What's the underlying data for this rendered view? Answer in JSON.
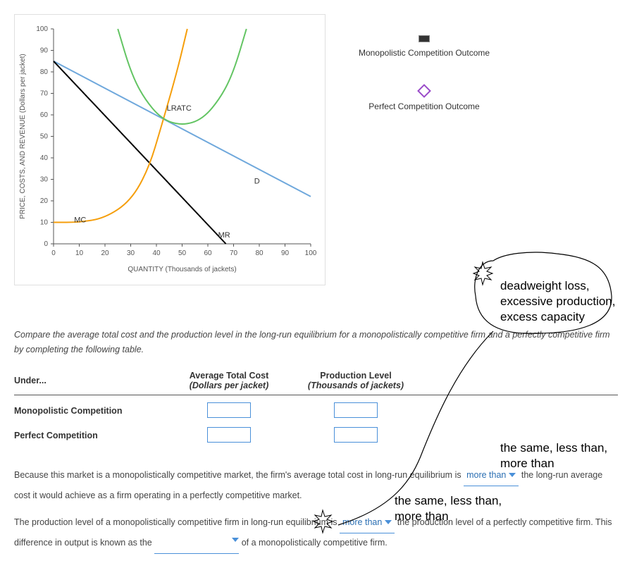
{
  "chart": {
    "y_axis_title": "PRICE, COSTS, AND REVENUE (Dollars per jacket)",
    "x_axis_title": "QUANTITY (Thousands of jackets)",
    "x_ticks": [
      0,
      10,
      20,
      30,
      40,
      50,
      60,
      70,
      80,
      90,
      100
    ],
    "y_ticks": [
      0,
      10,
      20,
      30,
      40,
      50,
      60,
      70,
      80,
      90,
      100
    ],
    "xlim": [
      0,
      100
    ],
    "ylim": [
      0,
      100
    ],
    "background_color": "#ffffff",
    "axis_color": "#555555",
    "curves": {
      "mc": {
        "color": "#f59e0b",
        "width": 2,
        "label": "MC",
        "label_xy": [
          8,
          10
        ],
        "points": [
          [
            0,
            10
          ],
          [
            10,
            10
          ],
          [
            20,
            12
          ],
          [
            30,
            20
          ],
          [
            37,
            35
          ],
          [
            42,
            55
          ],
          [
            48,
            80
          ],
          [
            52,
            100
          ]
        ]
      },
      "lratc": {
        "color": "#62c462",
        "width": 2,
        "label": "LRATC",
        "label_xy": [
          44,
          62
        ],
        "points": [
          [
            25,
            100
          ],
          [
            30,
            80
          ],
          [
            35,
            68
          ],
          [
            42,
            58
          ],
          [
            50,
            55
          ],
          [
            58,
            58
          ],
          [
            65,
            68
          ],
          [
            70,
            80
          ],
          [
            75,
            100
          ]
        ]
      },
      "demand": {
        "color": "#6fa8dc",
        "width": 2,
        "label": "D",
        "label_xy": [
          78,
          28
        ],
        "points": [
          [
            0,
            85
          ],
          [
            100,
            22
          ]
        ]
      },
      "mr": {
        "color": "#000000",
        "width": 2,
        "label": "MR",
        "label_xy": [
          64,
          3
        ],
        "points": [
          [
            0,
            85
          ],
          [
            67,
            0
          ]
        ]
      }
    }
  },
  "legend": {
    "mc_label": "Monopolistic Competition Outcome",
    "pc_label": "Perfect Competition Outcome"
  },
  "paragraph": "Compare the average total cost and the production level in the long-run equilibrium for a monopolistically competitive firm and a perfectly competitive firm by completing the following table.",
  "table": {
    "headers": {
      "c1": "Under...",
      "c2_top": "Average Total Cost",
      "c2_sub": "(Dollars per jacket)",
      "c3_top": "Production Level",
      "c3_sub": "(Thousands of jackets)"
    },
    "rows": [
      {
        "label": "Monopolistic Competition"
      },
      {
        "label": "Perfect Competition"
      }
    ]
  },
  "question1": {
    "pre": "Because this market is a monopolistically competitive market, the firm's average total cost in long-run equilibrium is ",
    "dropdown": "more than",
    "post": " the long-run average cost it would achieve as a firm operating in a perfectly competitive market."
  },
  "question2": {
    "pre": "The production level of a monopolistically competitive firm in long-run equilibrium is ",
    "dropdown": "more than",
    "mid": " the production level of a perfectly competitive firm. This difference in output is known as the ",
    "post": " of a monopolistically competitive firm."
  },
  "annotations": {
    "bubble": "deadweight loss,\nexcessive production,\nexcess capacity",
    "hint1": "the same, less than,\nmore than",
    "hint2": "the same, less than,\nmore than"
  }
}
